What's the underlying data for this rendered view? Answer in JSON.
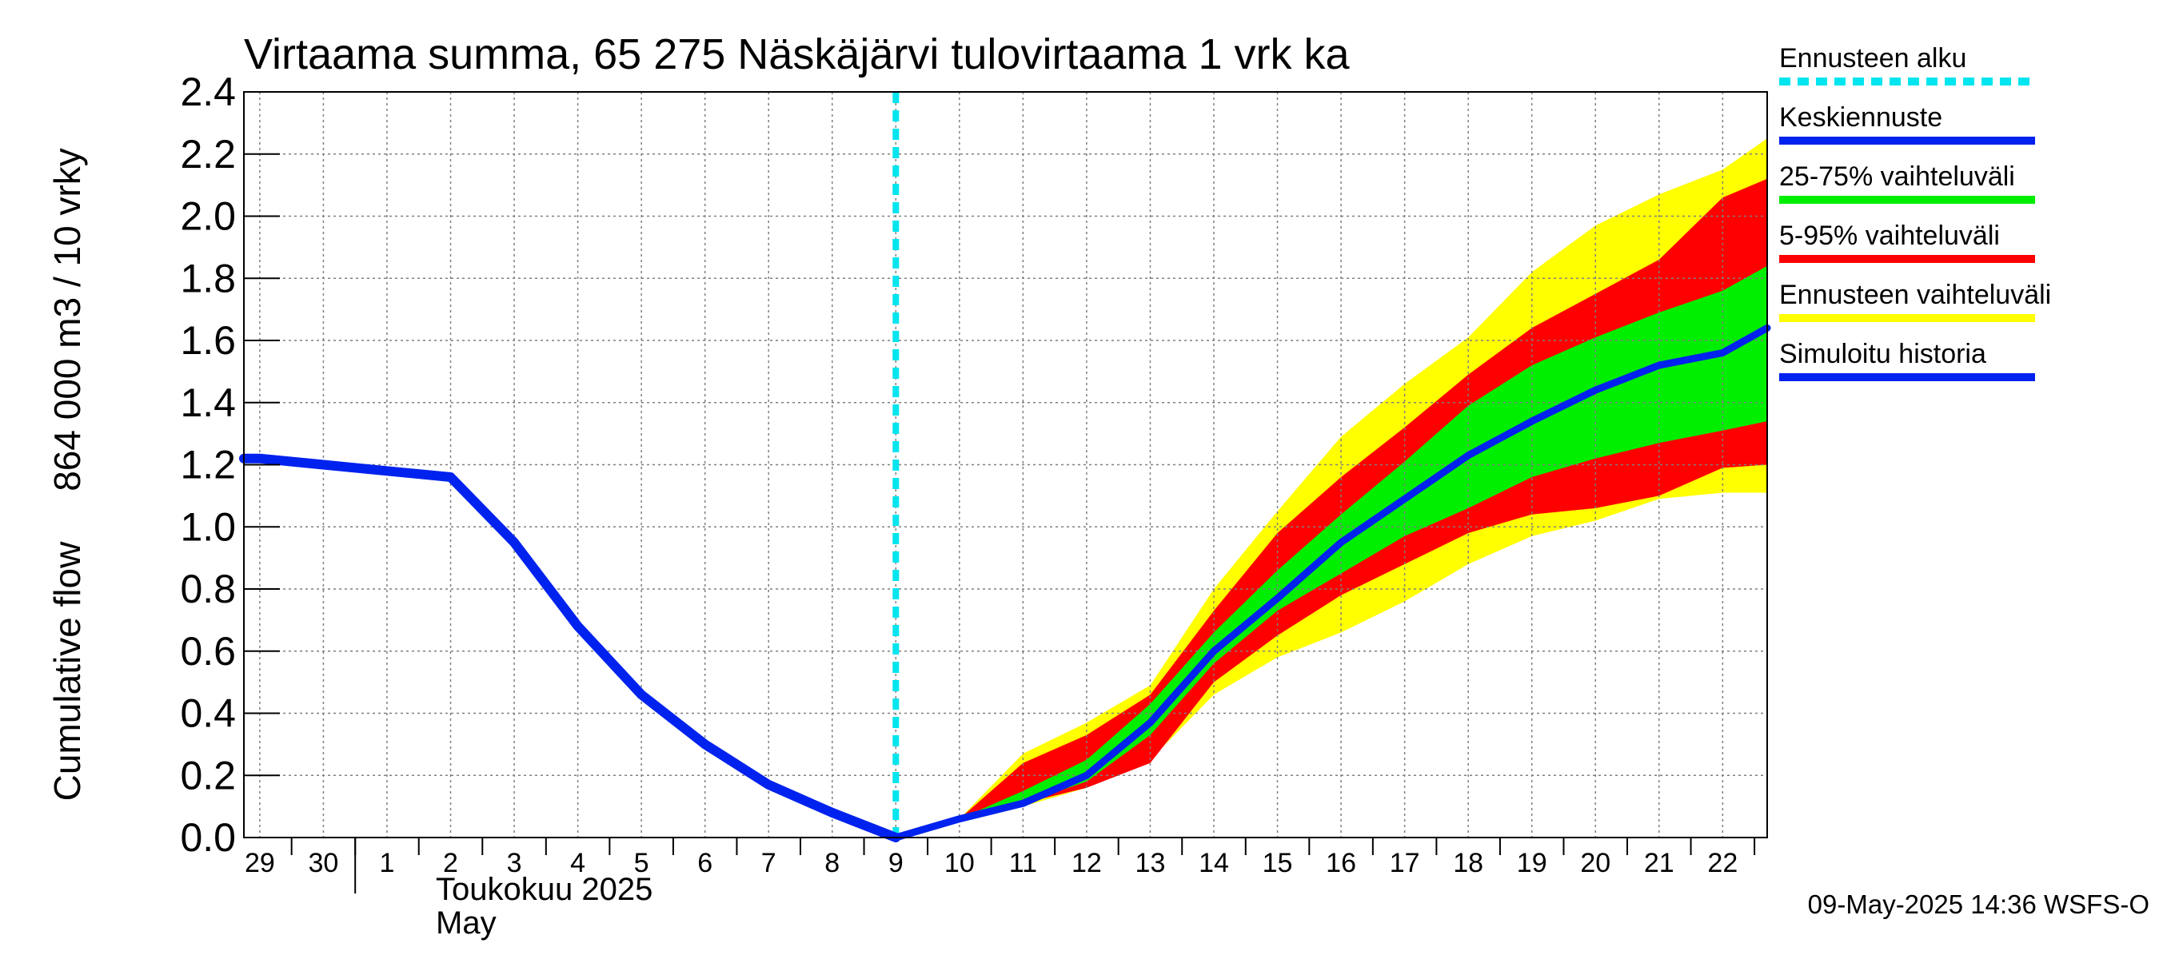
{
  "chart_data": {
    "type": "area",
    "title": "Virtaama summa, 65 275 Näskäjärvi tulovirtaama 1 vrk ka",
    "ylabel_outer": "Cumulative flow",
    "ylabel_inner": "864 000 m3 / 10 vrky",
    "ylim": [
      0,
      2.4
    ],
    "yticks": [
      "0.0",
      "0.2",
      "0.4",
      "0.6",
      "0.8",
      "1.0",
      "1.2",
      "1.4",
      "1.6",
      "1.8",
      "2.0",
      "2.2",
      "2.4"
    ],
    "xlim": [
      -10.25,
      13.7
    ],
    "day_labels": [
      {
        "x": -10,
        "label": "29"
      },
      {
        "x": -9,
        "label": "30"
      },
      {
        "x": -8,
        "label": "1"
      },
      {
        "x": -7,
        "label": "2"
      },
      {
        "x": -6,
        "label": "3"
      },
      {
        "x": -5,
        "label": "4"
      },
      {
        "x": -4,
        "label": "5"
      },
      {
        "x": -3,
        "label": "6"
      },
      {
        "x": -2,
        "label": "7"
      },
      {
        "x": -1,
        "label": "8"
      },
      {
        "x": 0,
        "label": "9"
      },
      {
        "x": 1,
        "label": "10"
      },
      {
        "x": 2,
        "label": "11"
      },
      {
        "x": 3,
        "label": "12"
      },
      {
        "x": 4,
        "label": "13"
      },
      {
        "x": 5,
        "label": "14"
      },
      {
        "x": 6,
        "label": "15"
      },
      {
        "x": 7,
        "label": "16"
      },
      {
        "x": 8,
        "label": "17"
      },
      {
        "x": 9,
        "label": "18"
      },
      {
        "x": 10,
        "label": "19"
      },
      {
        "x": 11,
        "label": "20"
      },
      {
        "x": 12,
        "label": "21"
      },
      {
        "x": 13,
        "label": "22"
      }
    ],
    "month_label_fi": "Toukokuu  2025",
    "month_label_en": "May",
    "month_boundary_x": -8.5,
    "forecast_start_x": 0,
    "grid": true,
    "legend_position": "right",
    "legend": [
      {
        "label": "Ennusteen alku",
        "color": "#00e5ee",
        "style": "dashed"
      },
      {
        "label": "Keskiennuste",
        "color": "#0022ee",
        "style": "solid"
      },
      {
        "label": "25-75% vaihteluväli",
        "color": "#00ee00",
        "style": "solid"
      },
      {
        "label": "5-95% vaihteluväli",
        "color": "#ff0000",
        "style": "solid"
      },
      {
        "label": "Ennusteen vaihteluväli",
        "color": "#ffff00",
        "style": "solid"
      },
      {
        "label": "Simuloitu historia",
        "color": "#0022ee",
        "style": "solid"
      }
    ],
    "colors": {
      "history": "#0022ee",
      "median": "#0022ee",
      "band_25_75": "#00ee00",
      "band_5_95": "#ff0000",
      "band_full": "#ffff00",
      "forecast_start": "#00e5ee",
      "grid": "#7f7f7f"
    },
    "series": [
      {
        "name": "Simuloitu historia",
        "x": [
          -10.25,
          -10,
          -9,
          -8,
          -7,
          -6,
          -5,
          -4,
          -3,
          -2,
          -1,
          0
        ],
        "y": [
          1.22,
          1.22,
          1.2,
          1.18,
          1.16,
          0.95,
          0.68,
          0.46,
          0.3,
          0.17,
          0.08,
          0.0
        ]
      },
      {
        "name": "Keskiennuste",
        "x": [
          0,
          1,
          2,
          3,
          4,
          5,
          6,
          7,
          8,
          9,
          10,
          11,
          12,
          13,
          13.7
        ],
        "y": [
          0.0,
          0.06,
          0.11,
          0.2,
          0.37,
          0.6,
          0.77,
          0.95,
          1.09,
          1.23,
          1.34,
          1.44,
          1.52,
          1.56,
          1.64
        ]
      }
    ],
    "bands": [
      {
        "name": "Ennusteen vaihteluväli",
        "x": [
          0,
          1,
          2,
          3,
          4,
          5,
          6,
          7,
          8,
          9,
          10,
          11,
          12,
          13,
          13.7
        ],
        "low": [
          0.0,
          0.06,
          0.1,
          0.16,
          0.25,
          0.46,
          0.58,
          0.66,
          0.76,
          0.88,
          0.97,
          1.02,
          1.09,
          1.11,
          1.11
        ],
        "high": [
          0.0,
          0.06,
          0.27,
          0.37,
          0.49,
          0.8,
          1.05,
          1.29,
          1.46,
          1.61,
          1.82,
          1.97,
          2.07,
          2.15,
          2.25
        ]
      },
      {
        "name": "5-95% vaihteluväli",
        "x": [
          0,
          1,
          2,
          3,
          4,
          5,
          6,
          7,
          8,
          9,
          10,
          11,
          12,
          13,
          13.7
        ],
        "low": [
          0.0,
          0.06,
          0.11,
          0.16,
          0.24,
          0.5,
          0.65,
          0.78,
          0.88,
          0.98,
          1.04,
          1.06,
          1.1,
          1.19,
          1.2
        ],
        "high": [
          0.0,
          0.06,
          0.24,
          0.33,
          0.46,
          0.73,
          0.98,
          1.16,
          1.32,
          1.49,
          1.64,
          1.75,
          1.86,
          2.06,
          2.12
        ]
      },
      {
        "name": "25-75% vaihteluväli",
        "x": [
          0,
          1,
          2,
          3,
          4,
          5,
          6,
          7,
          8,
          9,
          10,
          11,
          12,
          13,
          13.7
        ],
        "low": [
          0.0,
          0.06,
          0.11,
          0.18,
          0.33,
          0.56,
          0.73,
          0.85,
          0.97,
          1.06,
          1.16,
          1.22,
          1.27,
          1.31,
          1.34
        ],
        "high": [
          0.0,
          0.06,
          0.15,
          0.25,
          0.43,
          0.66,
          0.86,
          1.04,
          1.21,
          1.39,
          1.52,
          1.61,
          1.69,
          1.76,
          1.84
        ]
      }
    ]
  },
  "timestamp": "09-May-2025 14:36 WSFS-O"
}
